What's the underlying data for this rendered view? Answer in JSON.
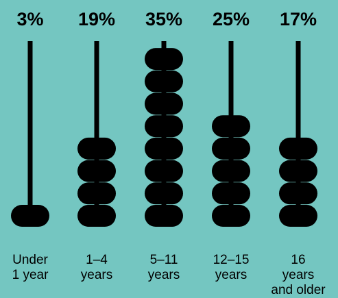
{
  "colors": {
    "background": "#74c6c1",
    "ink": "#000000"
  },
  "chart_data": {
    "type": "bar",
    "categories": [
      [
        "Under",
        "1 year"
      ],
      [
        "1–4",
        "years"
      ],
      [
        "5–11",
        "years"
      ],
      [
        "12–15",
        "years"
      ],
      [
        "16",
        "years",
        "and older"
      ]
    ],
    "values": [
      3,
      19,
      35,
      25,
      17
    ],
    "value_labels": [
      "3%",
      "19%",
      "35%",
      "25%",
      "17%"
    ],
    "bead_counts": [
      1,
      4,
      8,
      5,
      4
    ]
  }
}
